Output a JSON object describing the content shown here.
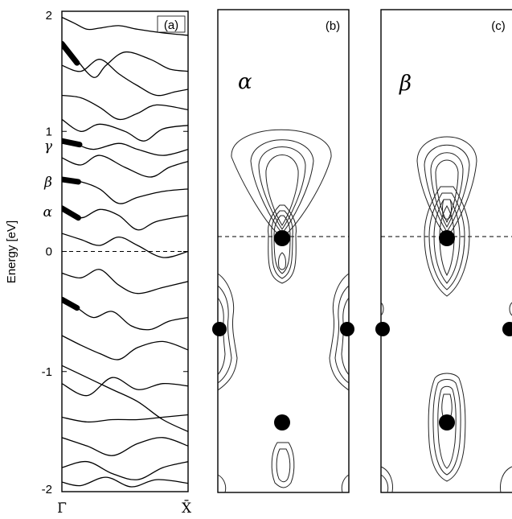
{
  "chart_data": [
    {
      "type": "line",
      "panel_label": "(a)",
      "ylabel": "Energy [eV]",
      "ylim": [
        -2,
        2
      ],
      "y_ticks": [
        -2,
        -1,
        0,
        1,
        2
      ],
      "x_ticks": [
        "Γ̄",
        "X̄"
      ],
      "fermi_level": 0,
      "state_labels": [
        {
          "name": "γ",
          "energy": 0.88
        },
        {
          "name": "β",
          "energy": 0.58
        },
        {
          "name": "α",
          "energy": 0.33
        }
      ],
      "highlighted_states": [
        {
          "k": [
            0.0,
            0.12
          ],
          "energy": [
            1.73,
            1.57
          ]
        },
        {
          "k": [
            0.0,
            0.14
          ],
          "energy": [
            0.92,
            0.89
          ]
        },
        {
          "k": [
            0.0,
            0.13
          ],
          "energy": [
            0.6,
            0.58
          ]
        },
        {
          "k": [
            0.0,
            0.13
          ],
          "energy": [
            0.36,
            0.28
          ]
        },
        {
          "k": [
            0.0,
            0.12
          ],
          "energy": [
            -0.4,
            -0.47
          ]
        }
      ],
      "bands": [
        {
          "k": [
            0,
            0.1,
            0.2,
            0.3,
            0.45,
            0.6,
            0.8,
            1.0
          ],
          "energy": [
            1.95,
            1.9,
            1.85,
            1.86,
            1.88,
            1.85,
            1.82,
            1.8
          ]
        },
        {
          "k": [
            0,
            0.1,
            0.25,
            0.35,
            0.5,
            0.7,
            0.85,
            1.0
          ],
          "energy": [
            1.74,
            1.62,
            1.45,
            1.55,
            1.66,
            1.6,
            1.52,
            1.5
          ]
        },
        {
          "k": [
            0,
            0.15,
            0.3,
            0.45,
            0.6,
            0.75,
            0.9,
            1.0
          ],
          "energy": [
            1.55,
            1.5,
            1.6,
            1.48,
            1.38,
            1.3,
            1.33,
            1.35
          ]
        },
        {
          "k": [
            0,
            0.15,
            0.3,
            0.45,
            0.6,
            0.75,
            1.0
          ],
          "energy": [
            1.3,
            1.28,
            1.2,
            1.1,
            1.15,
            1.22,
            1.18
          ]
        },
        {
          "k": [
            0,
            0.15,
            0.3,
            0.5,
            0.65,
            0.8,
            1.0
          ],
          "energy": [
            1.1,
            1.0,
            1.06,
            1.0,
            0.92,
            1.02,
            1.05
          ]
        },
        {
          "k": [
            0,
            0.1,
            0.25,
            0.45,
            0.6,
            0.8,
            1.0
          ],
          "energy": [
            0.92,
            0.9,
            0.85,
            0.9,
            0.85,
            0.8,
            0.85
          ]
        },
        {
          "k": [
            0,
            0.15,
            0.3,
            0.5,
            0.7,
            0.85,
            1.0
          ],
          "energy": [
            0.78,
            0.72,
            0.8,
            0.7,
            0.62,
            0.7,
            0.75
          ]
        },
        {
          "k": [
            0,
            0.15,
            0.3,
            0.45,
            0.6,
            0.8,
            1.0
          ],
          "energy": [
            0.6,
            0.58,
            0.52,
            0.4,
            0.45,
            0.5,
            0.52
          ]
        },
        {
          "k": [
            0,
            0.15,
            0.3,
            0.45,
            0.6,
            0.75,
            1.0
          ],
          "energy": [
            0.36,
            0.28,
            0.35,
            0.3,
            0.18,
            0.25,
            0.3
          ]
        },
        {
          "k": [
            0,
            0.15,
            0.3,
            0.45,
            0.6,
            0.8,
            1.0
          ],
          "energy": [
            0.15,
            0.1,
            0.05,
            0.12,
            0.05,
            -0.05,
            0.0
          ]
        },
        {
          "k": [
            0,
            0.15,
            0.3,
            0.45,
            0.6,
            0.8,
            1.0
          ],
          "energy": [
            -0.18,
            -0.22,
            -0.15,
            -0.28,
            -0.35,
            -0.3,
            -0.25
          ]
        },
        {
          "k": [
            0,
            0.12,
            0.25,
            0.4,
            0.55,
            0.7,
            0.85,
            1.0
          ],
          "energy": [
            -0.4,
            -0.47,
            -0.55,
            -0.5,
            -0.62,
            -0.65,
            -0.58,
            -0.55
          ]
        },
        {
          "k": [
            0,
            0.15,
            0.3,
            0.45,
            0.6,
            0.8,
            1.0
          ],
          "energy": [
            -0.7,
            -0.78,
            -0.85,
            -0.9,
            -0.8,
            -0.75,
            -0.82
          ]
        },
        {
          "k": [
            0,
            0.2,
            0.4,
            0.6,
            0.8,
            1.0
          ],
          "energy": [
            -0.95,
            -1.05,
            -1.15,
            -1.25,
            -1.4,
            -1.5
          ]
        },
        {
          "k": [
            0,
            0.2,
            0.4,
            0.6,
            0.8,
            1.0
          ],
          "energy": [
            -1.1,
            -1.2,
            -1.05,
            -1.15,
            -1.1,
            -1.12
          ]
        },
        {
          "k": [
            0,
            0.2,
            0.4,
            0.6,
            0.8,
            1.0
          ],
          "energy": [
            -1.38,
            -1.42,
            -1.4,
            -1.4,
            -1.38,
            -1.36
          ]
        },
        {
          "k": [
            0,
            0.2,
            0.4,
            0.6,
            0.8,
            1.0
          ],
          "energy": [
            -1.55,
            -1.62,
            -1.7,
            -1.6,
            -1.55,
            -1.62
          ]
        },
        {
          "k": [
            0,
            0.2,
            0.4,
            0.6,
            0.8,
            1.0
          ],
          "energy": [
            -1.8,
            -1.75,
            -1.85,
            -1.9,
            -1.8,
            -1.75
          ]
        },
        {
          "k": [
            0,
            0.15,
            0.35,
            0.55,
            0.75,
            1.0
          ],
          "energy": [
            -1.92,
            -1.95,
            -1.88,
            -1.96,
            -1.9,
            -1.93
          ]
        }
      ]
    },
    {
      "type": "contour",
      "panel_label": "(b)",
      "state": "α"
    },
    {
      "type": "contour",
      "panel_label": "(c)",
      "state": "β"
    }
  ]
}
